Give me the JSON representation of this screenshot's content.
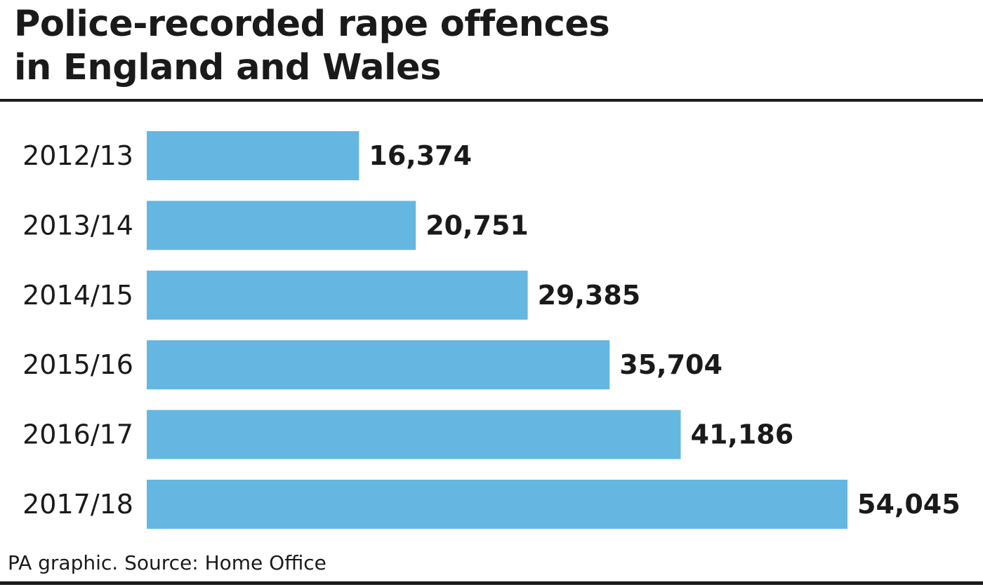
{
  "title_lines": [
    "Police-recorded rape offences",
    "in England and Wales"
  ],
  "source": "PA graphic. Source: Home Office",
  "colors": {
    "bar": "#65b7e1",
    "text": "#1a1a1a",
    "rule": "#1a1a1a"
  },
  "chart_data": {
    "type": "bar",
    "orientation": "horizontal",
    "title": "Police-recorded rape offences in England and Wales",
    "categories": [
      "2012/13",
      "2013/14",
      "2014/15",
      "2015/16",
      "2016/17",
      "2017/18"
    ],
    "values": [
      16374,
      20751,
      29385,
      35704,
      41186,
      54045
    ],
    "value_labels": [
      "16,374",
      "20,751",
      "29,385",
      "35,704",
      "41,186",
      "54,045"
    ],
    "xlim": [
      0,
      54045
    ],
    "grid": false,
    "legend": "none"
  }
}
